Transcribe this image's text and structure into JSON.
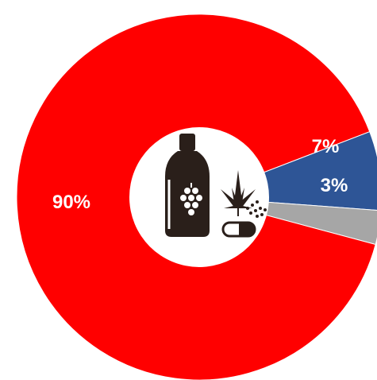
{
  "chart_data": {
    "type": "pie",
    "variant": "donut",
    "slices": [
      {
        "label": "7%",
        "value": 7,
        "color": "#2E5596"
      },
      {
        "label": "3%",
        "value": 3,
        "color": "#A6A6A6"
      },
      {
        "label": "90%",
        "value": 90,
        "color": "#FF0000"
      }
    ],
    "legend": "none",
    "center_icon": "alcohol-and-drugs-icon"
  }
}
